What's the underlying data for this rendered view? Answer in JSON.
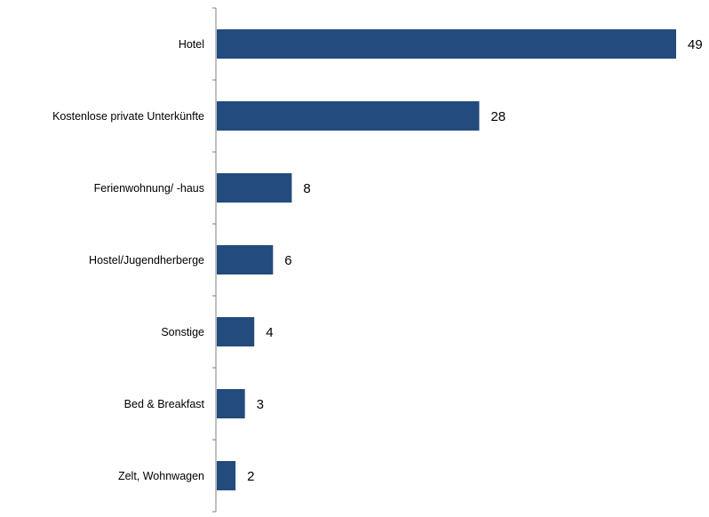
{
  "chart_data": {
    "type": "bar",
    "orientation": "horizontal",
    "categories": [
      "Hotel",
      "Kostenlose private Unterkünfte",
      "Ferienwohnung/ -haus",
      "Hostel/Jugendherberge",
      "Sonstige",
      "Bed & Breakfast",
      "Zelt, Wohnwagen"
    ],
    "values": [
      49,
      28,
      8,
      6,
      4,
      3,
      2
    ],
    "xlim": [
      0,
      49
    ],
    "grid": false,
    "legend": "none",
    "data_labels": true,
    "bar_color": "#234b7d",
    "axis_color": "#7f7f7f"
  }
}
